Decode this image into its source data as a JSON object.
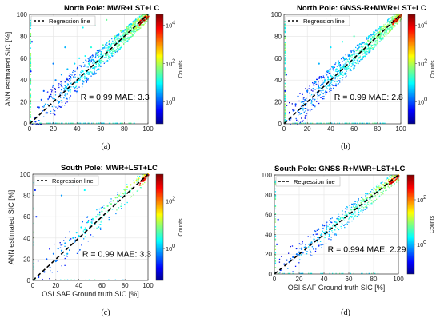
{
  "chart_data": [
    {
      "type": "scatter",
      "panel": "(a)",
      "title": "North Pole: MWR+LST+LC",
      "xlabel": "",
      "ylabel": "ANN estimated SIC [%]",
      "xlim": [
        0,
        100
      ],
      "ylim": [
        0,
        100
      ],
      "xticks": [
        "0",
        "20",
        "40",
        "60",
        "80",
        "100"
      ],
      "yticks": [
        "0",
        "20",
        "40",
        "60",
        "80",
        "100"
      ],
      "legend": "Regression line",
      "stats": "R = 0.99 MAE: 3.3",
      "colorbar": {
        "label": "Counts",
        "scale": "log",
        "ticks": [
          "10",
          "10",
          "10"
        ],
        "exponents": [
          "0",
          "2",
          "4"
        ]
      },
      "density": "high",
      "regression": {
        "x": [
          0,
          100
        ],
        "y": [
          0,
          100
        ]
      },
      "points": [
        [
          5,
          2
        ],
        [
          8,
          15
        ],
        [
          10,
          22
        ],
        [
          12,
          30
        ],
        [
          15,
          10
        ],
        [
          18,
          25
        ],
        [
          20,
          35
        ],
        [
          22,
          40
        ],
        [
          25,
          20
        ],
        [
          27,
          45
        ],
        [
          30,
          35
        ],
        [
          32,
          50
        ],
        [
          35,
          42
        ],
        [
          38,
          55
        ],
        [
          40,
          38
        ],
        [
          42,
          60
        ],
        [
          45,
          48
        ],
        [
          47,
          62
        ],
        [
          50,
          55
        ],
        [
          52,
          70
        ],
        [
          55,
          52
        ],
        [
          57,
          65
        ],
        [
          60,
          58
        ],
        [
          62,
          72
        ],
        [
          65,
          63
        ],
        [
          67,
          75
        ],
        [
          70,
          68
        ],
        [
          72,
          80
        ],
        [
          75,
          72
        ],
        [
          77,
          85
        ],
        [
          80,
          78
        ],
        [
          82,
          88
        ],
        [
          85,
          83
        ],
        [
          87,
          90
        ],
        [
          90,
          88
        ],
        [
          92,
          95
        ],
        [
          95,
          93
        ],
        [
          97,
          98
        ],
        [
          99,
          99
        ],
        [
          100,
          97
        ],
        [
          3,
          90
        ],
        [
          2,
          75
        ],
        [
          1,
          48
        ],
        [
          45,
          88
        ],
        [
          55,
          90
        ],
        [
          65,
          95
        ],
        [
          30,
          70
        ],
        [
          20,
          55
        ]
      ]
    },
    {
      "type": "scatter",
      "panel": "(b)",
      "title": "North Pole: GNSS-R+MWR+LST+LC",
      "xlabel": "",
      "ylabel": "",
      "xlim": [
        0,
        100
      ],
      "ylim": [
        0,
        100
      ],
      "xticks": [
        "0",
        "20",
        "40",
        "60",
        "80",
        "100"
      ],
      "yticks": [
        "0",
        "20",
        "40",
        "60",
        "80",
        "100"
      ],
      "legend": "Regression line",
      "stats": "R = 0.99 MAE: 2.8",
      "colorbar": {
        "label": "Counts",
        "scale": "log",
        "ticks": [
          "10",
          "10",
          "10"
        ],
        "exponents": [
          "0",
          "2",
          "4"
        ]
      },
      "density": "high",
      "regression": {
        "x": [
          0,
          100
        ],
        "y": [
          0,
          100
        ]
      },
      "points": [
        [
          5,
          3
        ],
        [
          8,
          12
        ],
        [
          10,
          18
        ],
        [
          12,
          25
        ],
        [
          15,
          14
        ],
        [
          18,
          22
        ],
        [
          20,
          30
        ],
        [
          22,
          28
        ],
        [
          25,
          32
        ],
        [
          27,
          38
        ],
        [
          30,
          33
        ],
        [
          32,
          42
        ],
        [
          35,
          40
        ],
        [
          38,
          48
        ],
        [
          40,
          44
        ],
        [
          42,
          52
        ],
        [
          45,
          50
        ],
        [
          47,
          55
        ],
        [
          50,
          52
        ],
        [
          52,
          60
        ],
        [
          55,
          57
        ],
        [
          57,
          62
        ],
        [
          60,
          60
        ],
        [
          62,
          67
        ],
        [
          65,
          66
        ],
        [
          67,
          70
        ],
        [
          70,
          71
        ],
        [
          72,
          76
        ],
        [
          75,
          75
        ],
        [
          77,
          80
        ],
        [
          80,
          80
        ],
        [
          82,
          84
        ],
        [
          85,
          85
        ],
        [
          87,
          89
        ],
        [
          90,
          90
        ],
        [
          92,
          93
        ],
        [
          95,
          95
        ],
        [
          97,
          98
        ],
        [
          99,
          99
        ],
        [
          100,
          98
        ],
        [
          2,
          45
        ],
        [
          1,
          30
        ],
        [
          40,
          70
        ],
        [
          50,
          75
        ],
        [
          60,
          80
        ],
        [
          30,
          55
        ]
      ]
    },
    {
      "type": "scatter",
      "panel": "(c)",
      "title": "South Pole: MWR+LST+LC",
      "xlabel": "OSI SAF Ground truth SIC [%]",
      "ylabel": "ANN estimated SIC [%]",
      "xlim": [
        0,
        100
      ],
      "ylim": [
        0,
        100
      ],
      "xticks": [
        "0",
        "20",
        "40",
        "60",
        "80",
        "100"
      ],
      "yticks": [
        "0",
        "20",
        "40",
        "60",
        "80",
        "100"
      ],
      "legend": "Regression line",
      "stats": "R = 0.99 MAE: 3.3",
      "colorbar": {
        "label": "Counts",
        "scale": "log",
        "ticks": [
          "10",
          "10"
        ],
        "exponents": [
          "0",
          "2"
        ]
      },
      "density": "low",
      "regression": {
        "x": [
          0,
          100
        ],
        "y": [
          0,
          100
        ]
      },
      "points": [
        [
          5,
          3
        ],
        [
          10,
          8
        ],
        [
          12,
          20
        ],
        [
          15,
          12
        ],
        [
          18,
          25
        ],
        [
          20,
          18
        ],
        [
          22,
          30
        ],
        [
          25,
          28
        ],
        [
          28,
          35
        ],
        [
          30,
          25
        ],
        [
          32,
          38
        ],
        [
          35,
          40
        ],
        [
          38,
          45
        ],
        [
          40,
          42
        ],
        [
          42,
          50
        ],
        [
          45,
          48
        ],
        [
          48,
          55
        ],
        [
          50,
          52
        ],
        [
          52,
          58
        ],
        [
          55,
          60
        ],
        [
          58,
          62
        ],
        [
          60,
          65
        ],
        [
          62,
          68
        ],
        [
          65,
          70
        ],
        [
          68,
          72
        ],
        [
          70,
          75
        ],
        [
          72,
          78
        ],
        [
          75,
          80
        ],
        [
          78,
          82
        ],
        [
          80,
          85
        ],
        [
          82,
          88
        ],
        [
          85,
          90
        ],
        [
          88,
          92
        ],
        [
          90,
          94
        ],
        [
          92,
          96
        ],
        [
          95,
          97
        ],
        [
          97,
          99
        ],
        [
          99,
          99
        ],
        [
          100,
          100
        ],
        [
          2,
          85
        ],
        [
          3,
          60
        ],
        [
          25,
          80
        ],
        [
          35,
          90
        ],
        [
          45,
          85
        ]
      ]
    },
    {
      "type": "scatter",
      "panel": "(d)",
      "title": "South Pole: GNSS-R+MWR+LST+LC",
      "xlabel": "OSI SAF Ground truth SIC [%]",
      "ylabel": "",
      "xlim": [
        0,
        100
      ],
      "ylim": [
        0,
        100
      ],
      "xticks": [
        "0",
        "20",
        "40",
        "60",
        "80",
        "100"
      ],
      "yticks": [
        "0",
        "20",
        "40",
        "60",
        "80",
        "100"
      ],
      "legend": "Regression line",
      "stats": "R = 0.994 MAE: 2.29",
      "colorbar": {
        "label": "Counts",
        "scale": "log",
        "ticks": [
          "10",
          "10"
        ],
        "exponents": [
          "0",
          "2"
        ]
      },
      "density": "medium",
      "regression": {
        "x": [
          0,
          100
        ],
        "y": [
          0,
          100
        ]
      },
      "points": [
        [
          5,
          4
        ],
        [
          8,
          10
        ],
        [
          10,
          14
        ],
        [
          12,
          12
        ],
        [
          15,
          17
        ],
        [
          18,
          20
        ],
        [
          20,
          22
        ],
        [
          22,
          25
        ],
        [
          25,
          27
        ],
        [
          28,
          30
        ],
        [
          30,
          32
        ],
        [
          32,
          35
        ],
        [
          35,
          37
        ],
        [
          38,
          40
        ],
        [
          40,
          42
        ],
        [
          42,
          45
        ],
        [
          45,
          47
        ],
        [
          48,
          50
        ],
        [
          50,
          52
        ],
        [
          52,
          55
        ],
        [
          55,
          57
        ],
        [
          58,
          60
        ],
        [
          60,
          62
        ],
        [
          62,
          65
        ],
        [
          65,
          67
        ],
        [
          68,
          70
        ],
        [
          70,
          72
        ],
        [
          72,
          75
        ],
        [
          75,
          77
        ],
        [
          78,
          80
        ],
        [
          80,
          82
        ],
        [
          82,
          85
        ],
        [
          85,
          87
        ],
        [
          88,
          90
        ],
        [
          90,
          92
        ],
        [
          92,
          94
        ],
        [
          95,
          96
        ],
        [
          97,
          98
        ],
        [
          99,
          99
        ],
        [
          100,
          100
        ],
        [
          2,
          30
        ],
        [
          3,
          55
        ]
      ]
    }
  ],
  "captions": [
    "(a)",
    "(b)",
    "(c)",
    "(d)"
  ],
  "colors": {
    "regression": "#000000",
    "background": "#ffffff",
    "low": "#0000ff",
    "high": "#ff0000"
  }
}
